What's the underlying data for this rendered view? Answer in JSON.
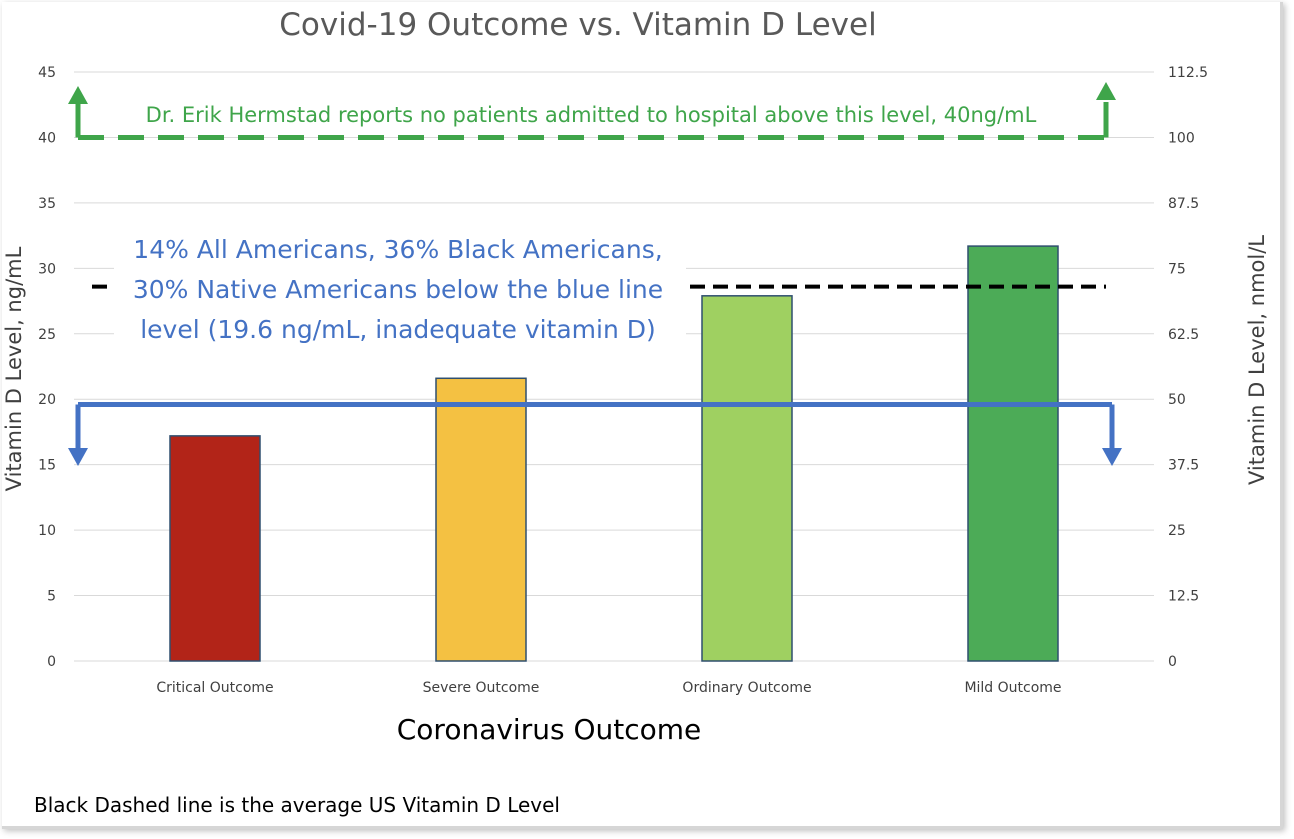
{
  "chart_data": {
    "type": "bar",
    "title": "Covid-19 Outcome vs. Vitamin D Level",
    "xlabel": "Coronavirus Outcome",
    "ylabel": "Vitamin D Level, ng/mL",
    "ylabel_right": "Vitamin D Level, nmol/L",
    "categories": [
      "Critical Outcome",
      "Severe Outcome",
      "Ordinary Outcome",
      "Mild Outcome"
    ],
    "values": [
      17.2,
      21.6,
      27.9,
      31.7
    ],
    "bar_colors": [
      "#b22418",
      "#f4c142",
      "#9fd061",
      "#4cab57"
    ],
    "bar_edge_color": "#2f4f6f",
    "ylim": [
      0,
      45
    ],
    "yticks": [
      "0",
      "5",
      "10",
      "15",
      "20",
      "25",
      "30",
      "35",
      "40",
      "45"
    ],
    "ylim_right": [
      0,
      112.5
    ],
    "yticks_right": [
      "0",
      "12.5",
      "25",
      "37.5",
      "50",
      "62.5",
      "75",
      "87.5",
      "100",
      "112.5"
    ],
    "grid": "horizontal",
    "reference_lines": [
      {
        "value": 40,
        "color": "#3fa54a",
        "style": "dashed",
        "label_lines": [
          "Dr. Erik Hermstad reports no patients admitted to hospital above this level, 40ng/mL"
        ]
      },
      {
        "value": 19.6,
        "color": "#4472c4",
        "style": "solid",
        "label_lines": [
          "14% All Americans, 36% Black Americans,",
          "30% Native Americans below the blue line",
          "level  (19.6 ng/mL, inadequate vitamin D)"
        ]
      },
      {
        "value": 28.6,
        "color": "#000000",
        "style": "dashed",
        "label_lines": []
      }
    ],
    "footnote": "Black Dashed line is the average US Vitamin D Level"
  }
}
